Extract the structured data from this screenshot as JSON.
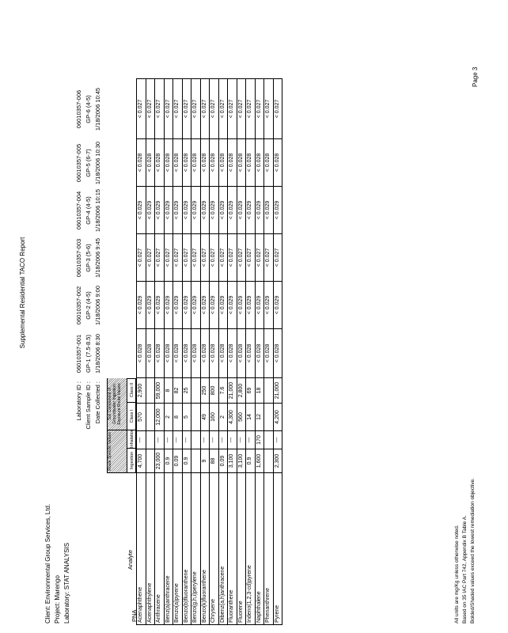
{
  "title": "Supplemental Residential TACO Report",
  "client_info": {
    "client": "Client:  Environmental Group Services, Ltd.",
    "project": "Project:  Marengo",
    "laboratory": "Laboratory:  STAT ANALYSIS"
  },
  "sample_header_labels": {
    "lab_id": "Laboratory ID :",
    "client_sample_id": "Client Sample ID :",
    "date_collected": "Date Collected :"
  },
  "samples": [
    {
      "lab_id": "06010357-001",
      "client_id": "GP-1 (7.5-8.5)",
      "date": "1/18/2006 8:30"
    },
    {
      "lab_id": "06010357-002",
      "client_id": "GP-2 (4-5)",
      "date": "1/18/2006 9:00"
    },
    {
      "lab_id": "06010357-003",
      "client_id": "GP-3 (5-6)",
      "date": "1/18/2006 9:45"
    },
    {
      "lab_id": "06010357-004",
      "client_id": "GP-4 (4-5)",
      "date": "1/18/2006 10:15"
    },
    {
      "lab_id": "06010357-005",
      "client_id": "GP-5 (6-7)",
      "date": "1/18/2006 10:30"
    },
    {
      "lab_id": "06010357-006",
      "client_id": "GP-6 (4-5)",
      "date": "1/18/2006 10:45"
    }
  ],
  "remediation_header": {
    "group1": "Route Specific Values",
    "group2": "Soil Component of Groundwater Ingestion Exposure Route Values",
    "sub": [
      "Ingestion",
      "Inhalation",
      "Class I",
      "Class II"
    ]
  },
  "section": "PNA",
  "analyte_header": "Analyte",
  "rows": [
    {
      "analyte": "Acenaphthene",
      "ing": "4,700",
      "inh": "---",
      "c1": "570",
      "c2": "2,900",
      "results": [
        "< 0.028",
        "< 0.029",
        "< 0.027",
        "< 0.029",
        "< 0.028",
        "< 0.027"
      ]
    },
    {
      "analyte": "Acenaphthylene",
      "ing": "",
      "inh": "",
      "c1": "",
      "c2": "",
      "results": [
        "< 0.028",
        "< 0.029",
        "< 0.027",
        "< 0.029",
        "< 0.028",
        "< 0.027"
      ]
    },
    {
      "analyte": "Anthracene",
      "ing": "23,000",
      "inh": "---",
      "c1": "12,000",
      "c2": "59,000",
      "results": [
        "< 0.028",
        "< 0.029",
        "< 0.027",
        "< 0.029",
        "< 0.028",
        "< 0.027"
      ]
    },
    {
      "analyte": "Benz(a)anthracene",
      "ing": "0.9",
      "inh": "---",
      "c1": "2",
      "c2": "8",
      "results": [
        "< 0.028",
        "< 0.029",
        "< 0.027",
        "< 0.029",
        "< 0.028",
        "< 0.027"
      ]
    },
    {
      "analyte": "Benzo(a)pyrene",
      "ing": "0.09",
      "inh": "---",
      "c1": "8",
      "c2": "82",
      "results": [
        "< 0.028",
        "< 0.029",
        "< 0.027",
        "< 0.029",
        "< 0.028",
        "< 0.027"
      ]
    },
    {
      "analyte": "Benzo(b)fluoranthene",
      "ing": "0.9",
      "inh": "---",
      "c1": "5",
      "c2": "25",
      "results": [
        "< 0.028",
        "< 0.029",
        "< 0.027",
        "< 0.029",
        "< 0.028",
        "< 0.027"
      ]
    },
    {
      "analyte": "Benzo(g,h,i)perylene",
      "ing": "",
      "inh": "",
      "c1": "",
      "c2": "",
      "results": [
        "< 0.028",
        "< 0.029",
        "< 0.027",
        "< 0.029",
        "< 0.028",
        "< 0.027"
      ]
    },
    {
      "analyte": "Benzo(k)fluoranthene",
      "ing": "9",
      "inh": "---",
      "c1": "49",
      "c2": "250",
      "results": [
        "< 0.028",
        "< 0.029",
        "< 0.027",
        "< 0.029",
        "< 0.028",
        "< 0.027"
      ]
    },
    {
      "analyte": "Chrysene",
      "ing": "88",
      "inh": "---",
      "c1": "160",
      "c2": "800",
      "results": [
        "< 0.028",
        "< 0.029",
        "< 0.027",
        "< 0.029",
        "< 0.028",
        "< 0.027"
      ]
    },
    {
      "analyte": "Dibenz(a,h)anthracene",
      "ing": "0.09",
      "inh": "---",
      "c1": "2",
      "c2": "7.6",
      "results": [
        "< 0.028",
        "< 0.029",
        "< 0.027",
        "< 0.029",
        "< 0.028",
        "< 0.027"
      ]
    },
    {
      "analyte": "Fluoranthene",
      "ing": "3,100",
      "inh": "---",
      "c1": "4,300",
      "c2": "21,000",
      "results": [
        "< 0.028",
        "< 0.029",
        "< 0.027",
        "< 0.029",
        "< 0.028",
        "< 0.027"
      ]
    },
    {
      "analyte": "Fluorene",
      "ing": "3,100",
      "inh": "---",
      "c1": "560",
      "c2": "2,800",
      "results": [
        "< 0.028",
        "< 0.029",
        "< 0.027",
        "< 0.029",
        "< 0.028",
        "< 0.027"
      ]
    },
    {
      "analyte": "Indeno(1,2,3-cd)pyrene",
      "ing": "0.9",
      "inh": "---",
      "c1": "14",
      "c2": "69",
      "results": [
        "< 0.028",
        "< 0.029",
        "< 0.027",
        "< 0.029",
        "< 0.028",
        "< 0.027"
      ]
    },
    {
      "analyte": "Naphthalene",
      "ing": "1,600",
      "inh": "170",
      "c1": "12",
      "c2": "18",
      "results": [
        "< 0.028",
        "< 0.029",
        "< 0.027",
        "< 0.029",
        "< 0.028",
        "< 0.027"
      ]
    },
    {
      "analyte": "Phenanthrene",
      "ing": "",
      "inh": "",
      "c1": "",
      "c2": "",
      "results": [
        "< 0.028",
        "< 0.029",
        "< 0.027",
        "< 0.029",
        "< 0.028",
        "< 0.027"
      ]
    },
    {
      "analyte": "Pyrene",
      "ing": "2,300",
      "inh": "---",
      "c1": "4,200",
      "c2": "21,000",
      "results": [
        "< 0.028",
        "< 0.029",
        "< 0.027",
        "< 0.029",
        "< 0.028",
        "< 0.027"
      ]
    }
  ],
  "footnotes": [
    "All units are mg/Kg unless otherwise noted.",
    "Based on 35 IAC Part 742, Appendix B Table A.",
    "Bolded/Shaded values exceed the lowest remediation objective."
  ],
  "page_label": "Page 3"
}
